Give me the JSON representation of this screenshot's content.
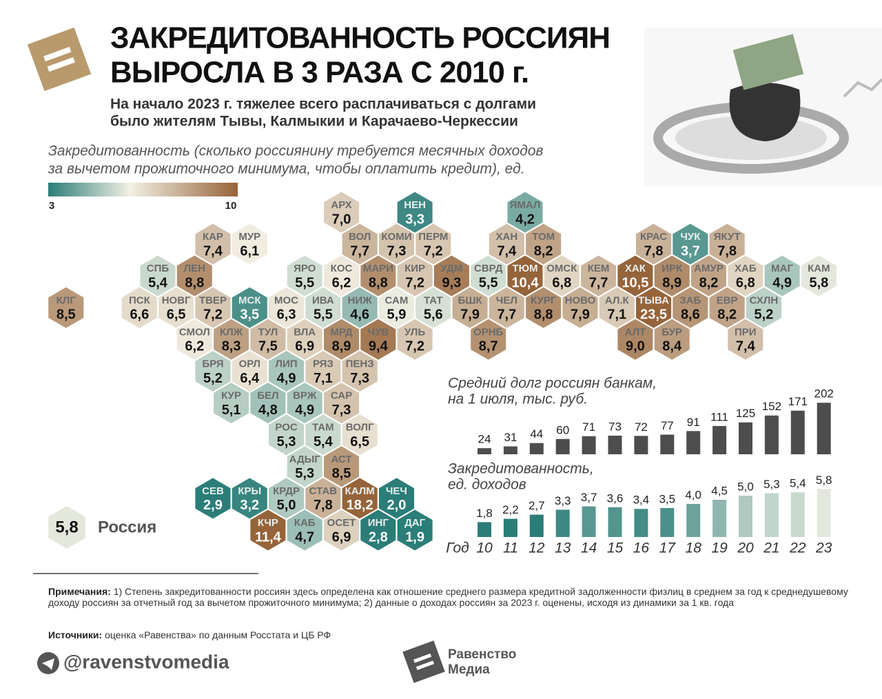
{
  "header": {
    "title": [
      "ЗАКРЕДИТОВАННОСТЬ РОССИЯН",
      "ВЫРОСЛА В 3 РАЗА С 2010 г."
    ],
    "subtitle": [
      "На начало 2023 г. тяжелее всего расплачиваться с долгами",
      "было жителям Тывы, Калмыкии и Карачаево-Черкессии"
    ]
  },
  "map": {
    "caption": [
      "Закредитованность (сколько россиянину требуется месячных доходов",
      "за вычетом прожиточного минимума, чтобы оплатить кредит), ед."
    ],
    "scale": {
      "min": 3,
      "max": 10
    },
    "regions": [
      "АРХ",
      "НЕН",
      "ЯМАЛ",
      "КАР",
      "МУР",
      "ВОЛ",
      "КОМИ",
      "ПЕРМ",
      "ХАН",
      "ТОМ",
      "КРАС",
      "ЧУК",
      "ЯКУТ",
      "СПБ",
      "ЛЕН",
      "ЯРО",
      "КОС",
      "МАРИ",
      "КИР",
      "УДМ",
      "СВРД",
      "ТЮМ",
      "ОМСК",
      "КЕМ",
      "ХАК",
      "ИРК",
      "АМУР",
      "ХАБ",
      "МАГ",
      "КАМ",
      "КЛГ",
      "ПСК",
      "НОВГ",
      "ТВЕР",
      "МСК",
      "МОС",
      "ИВА",
      "НИЖ",
      "САМ",
      "ТАТ",
      "БШК",
      "ЧЕЛ",
      "КУРГ",
      "НОВО",
      "АЛ.К",
      "ТЫВА",
      "ЗАБ",
      "ЕВР",
      "СХЛН",
      "СМОЛ",
      "КЛЖ",
      "ТУЛ",
      "ВЛА",
      "МРД",
      "ЧУВ",
      "УЛЬ",
      "ОРНБ",
      "АЛТ",
      "БУР",
      "ПРИ",
      "БРЯ",
      "ОРЛ",
      "ЛИП",
      "РЯЗ",
      "ПЕНЗ",
      "КУР",
      "БЕЛ",
      "ВРЖ",
      "САР",
      "РОС",
      "ТАМ",
      "ВОЛГ",
      "АДЫГ",
      "АСТ",
      "СЕВ",
      "КРЫ",
      "КРДР",
      "СТАВ",
      "КАЛМ",
      "ЧЕЧ",
      "КЧР",
      "КАБ",
      "ОСЕТ",
      "ИНГ",
      "ДАГ"
    ],
    "values": [
      7.0,
      3.3,
      4.2,
      7.4,
      6.1,
      7.7,
      7.3,
      7.2,
      7.4,
      8.2,
      7.8,
      3.7,
      7.8,
      5.4,
      8.8,
      5.5,
      6.2,
      8.8,
      7.2,
      9.3,
      5.5,
      10.4,
      6.8,
      7.7,
      10.5,
      8.9,
      8.2,
      6.8,
      4.9,
      5.8,
      8.5,
      6.6,
      6.5,
      7.2,
      3.5,
      6.3,
      5.5,
      4.6,
      5.9,
      5.6,
      7.9,
      7.7,
      8.8,
      7.9,
      7.1,
      23.5,
      8.6,
      8.2,
      5.2,
      6.2,
      8.3,
      7.5,
      6.9,
      8.9,
      9.4,
      7.2,
      8.7,
      9.0,
      8.4,
      7.4,
      5.2,
      6.4,
      4.9,
      7.1,
      7.3,
      5.1,
      4.8,
      4.9,
      7.3,
      5.3,
      5.4,
      6.5,
      5.3,
      8.5,
      2.9,
      3.2,
      5.0,
      7.8,
      18.2,
      2.0,
      11.4,
      4.7,
      6.9,
      2.8,
      1.9
    ],
    "value_labels": [
      "7,0",
      "3,3",
      "4,2",
      "7,4",
      "6,1",
      "7,7",
      "7,3",
      "7,2",
      "7,4",
      "8,2",
      "7,8",
      "3,7",
      "7,8",
      "5,4",
      "8,8",
      "5,5",
      "6,2",
      "8,8",
      "7,2",
      "9,3",
      "5,5",
      "10,4",
      "6,8",
      "7,7",
      "10,5",
      "8,9",
      "8,2",
      "6,8",
      "4,9",
      "5,8",
      "8,5",
      "6,6",
      "6,5",
      "7,2",
      "3,5",
      "6,3",
      "5,5",
      "4,6",
      "5,9",
      "5,6",
      "7,9",
      "7,7",
      "8,8",
      "7,9",
      "7,1",
      "23,5",
      "8,6",
      "8,2",
      "5,2",
      "6,2",
      "8,3",
      "7,5",
      "6,9",
      "8,9",
      "9,4",
      "7,2",
      "8,7",
      "9,0",
      "8,4",
      "7,4",
      "5,2",
      "6,4",
      "4,9",
      "7,1",
      "7,3",
      "5,1",
      "4,8",
      "4,9",
      "7,3",
      "5,3",
      "5,4",
      "6,5",
      "5,3",
      "8,5",
      "2,9",
      "3,2",
      "5,0",
      "7,8",
      "18,2",
      "2,0",
      "11,4",
      "4,7",
      "6,9",
      "2,8",
      "1,9"
    ],
    "russia": {
      "name": "Россия",
      "value": 5.8,
      "value_label": "5,8"
    }
  },
  "chart_data": [
    {
      "type": "bar",
      "title": [
        "Средний долг россиян банкам,",
        "на 1 июля, тыс. руб."
      ],
      "color": "#4d4d4d",
      "values": [
        24,
        31,
        44,
        60,
        71,
        73,
        72,
        77,
        91,
        111,
        125,
        152,
        171,
        202
      ]
    },
    {
      "type": "bar",
      "title": [
        "Закредитованность,",
        "ед. доходов"
      ],
      "x_label": "Год",
      "categories": [
        "10",
        "11",
        "12",
        "13",
        "14",
        "15",
        "16",
        "17",
        "18",
        "19",
        "20",
        "21",
        "22",
        "23"
      ],
      "values": [
        1.8,
        2.2,
        2.7,
        3.3,
        3.7,
        3.6,
        3.4,
        3.5,
        4.0,
        4.5,
        5.0,
        5.3,
        5.4,
        5.8
      ],
      "value_labels": [
        "1,8",
        "2,2",
        "2,7",
        "3,3",
        "3,7",
        "3,6",
        "3,4",
        "3,5",
        "4,0",
        "4,5",
        "5,0",
        "5,3",
        "5,4",
        "5,8"
      ]
    }
  ],
  "notes": {
    "label": "Примечания:",
    "text": "1) Степень закредитованности россиян здесь определена как отношение среднего размера кредитной задолженности физлиц в среднем за год к среднедушевому доходу россиян за отчетный год за вычетом прожиточного минимума; 2) данные о доходах россиян за 2023 г. оценены, исходя из динамики за 1 кв. года"
  },
  "sources": {
    "label": "Источники:",
    "text": "оценка «Равенства» по данным Росстата и ЦБ РФ"
  },
  "footer": {
    "handle": "@ravenstvomedia",
    "brand": [
      "Равенство",
      "Медиа"
    ]
  }
}
